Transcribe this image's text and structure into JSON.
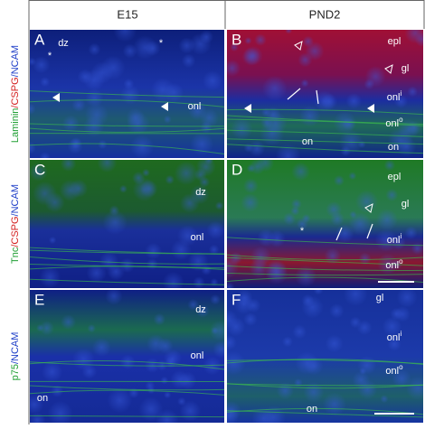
{
  "header": {
    "columns": [
      "E15",
      "PND2"
    ]
  },
  "rows": [
    {
      "stain": [
        {
          "text": "Laminin",
          "color": "#22a035"
        },
        {
          "text": "/CSPG",
          "color": "#d42020"
        },
        {
          "text": "/NCAM",
          "color": "#1f3fc8"
        }
      ]
    },
    {
      "stain": [
        {
          "text": "Tnc",
          "color": "#22a035"
        },
        {
          "text": "/CSPG",
          "color": "#d42020"
        },
        {
          "text": "/NCAM",
          "color": "#1f3fc8"
        }
      ]
    },
    {
      "stain": [
        {
          "text": "p75",
          "color": "#22a035"
        },
        {
          "text": "/NCAM",
          "color": "#1f3fc8"
        }
      ]
    }
  ],
  "panels": [
    {
      "label": "A",
      "annotations": [
        {
          "text": "dz"
        },
        {
          "text": "*"
        },
        {
          "text": "*"
        },
        {
          "text": "onl"
        }
      ]
    },
    {
      "label": "B",
      "annotations": [
        {
          "text": "epl"
        },
        {
          "text": "gl"
        },
        {
          "text": "onl",
          "sup": "i"
        },
        {
          "text": "onl",
          "sup": "o"
        },
        {
          "text": "on"
        },
        {
          "text": "on"
        }
      ]
    },
    {
      "label": "C",
      "annotations": [
        {
          "text": "dz"
        },
        {
          "text": "onl"
        }
      ]
    },
    {
      "label": "D",
      "annotations": [
        {
          "text": "epl"
        },
        {
          "text": "gl"
        },
        {
          "text": "*"
        },
        {
          "text": "onl",
          "sup": "i"
        },
        {
          "text": "onl",
          "sup": "o"
        }
      ]
    },
    {
      "label": "E",
      "annotations": [
        {
          "text": "dz"
        },
        {
          "text": "onl"
        },
        {
          "text": "on"
        }
      ]
    },
    {
      "label": "F",
      "annotations": [
        {
          "text": "gl"
        },
        {
          "text": "onl",
          "sup": "i"
        },
        {
          "text": "onl",
          "sup": "o"
        },
        {
          "text": "on"
        }
      ]
    }
  ]
}
